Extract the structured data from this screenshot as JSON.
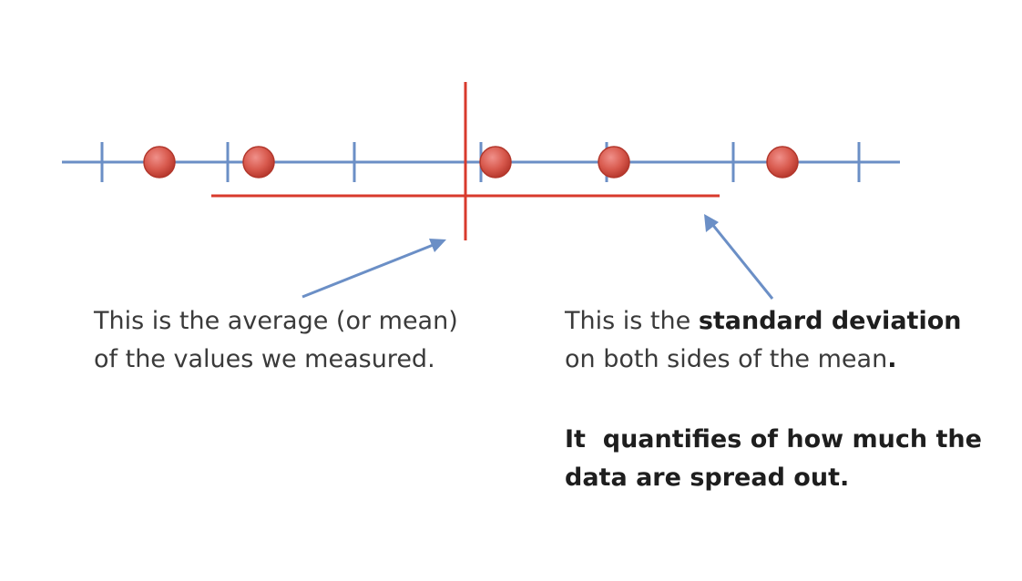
{
  "colors": {
    "number_line": "#6b8fc6",
    "mean_and_sd": "#d83a2c",
    "point_fill": "#d85a4e",
    "point_stroke": "#b2372c",
    "arrow": "#6b8fc6",
    "text": "#3a3a3a"
  },
  "captions": {
    "mean_line1": "This is the average (or mean)",
    "mean_line2": "of the values we measured.",
    "sd_prefix": "This is the ",
    "sd_bold": "standard deviation",
    "sd_line2": "on both sides of the mean",
    "sd_period": ".",
    "spread_line1": "It  quantifies of how much the",
    "spread_line2": "data are spread out."
  }
}
